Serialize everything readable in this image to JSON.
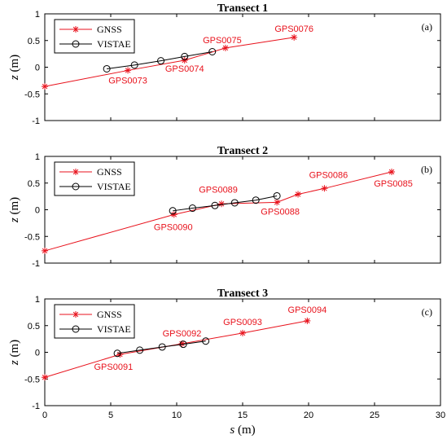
{
  "colors": {
    "gnss": "#e8121c",
    "vistae": "#000000"
  },
  "chart_data": [
    {
      "type": "line",
      "title": "Transect 1",
      "panel_label": "(a)",
      "xlabel": "",
      "ylabel": "z (m)",
      "xlim": [
        0,
        30
      ],
      "ylim": [
        -1,
        1
      ],
      "yticks": [
        "-1",
        "-0.5",
        "0",
        "0.5",
        "1"
      ],
      "legend": [
        "GNSS",
        "VISTAE"
      ],
      "legend_position": "top-left",
      "series": [
        {
          "name": "GNSS",
          "marker": "star",
          "points": [
            [
              0,
              -0.36
            ],
            [
              6.3,
              -0.06
            ],
            [
              10.6,
              0.13
            ],
            [
              13.7,
              0.36
            ],
            [
              18.9,
              0.56
            ]
          ]
        },
        {
          "name": "VISTAE",
          "marker": "circle",
          "points": [
            [
              4.7,
              -0.03
            ],
            [
              6.8,
              0.04
            ],
            [
              8.8,
              0.12
            ],
            [
              10.6,
              0.2
            ],
            [
              12.7,
              0.29
            ]
          ]
        }
      ],
      "annotations": [
        {
          "text": "GPS0073",
          "x": 6.3,
          "y": -0.06
        },
        {
          "text": "GPS0074",
          "x": 10.6,
          "y": 0.13
        },
        {
          "text": "GPS0075",
          "x": 13.7,
          "y": 0.36
        },
        {
          "text": "GPS0076",
          "x": 18.9,
          "y": 0.56
        }
      ]
    },
    {
      "type": "line",
      "title": "Transect 2",
      "panel_label": "(b)",
      "xlabel": "",
      "ylabel": "z (m)",
      "xlim": [
        0,
        30
      ],
      "ylim": [
        -1,
        1
      ],
      "yticks": [
        "-1",
        "-0.5",
        "0",
        "0.5",
        "1"
      ],
      "legend": [
        "GNSS",
        "VISTAE"
      ],
      "legend_position": "top-left",
      "series": [
        {
          "name": "GNSS",
          "marker": "star",
          "points": [
            [
              0,
              -0.77
            ],
            [
              9.8,
              -0.09
            ],
            [
              13.4,
              0.11
            ],
            [
              17.6,
              0.14
            ],
            [
              19.2,
              0.29
            ],
            [
              21.2,
              0.4
            ],
            [
              26.3,
              0.71
            ]
          ]
        },
        {
          "name": "VISTAE",
          "marker": "circle",
          "points": [
            [
              9.7,
              -0.02
            ],
            [
              11.2,
              0.03
            ],
            [
              12.9,
              0.08
            ],
            [
              14.4,
              0.13
            ],
            [
              16.0,
              0.18
            ],
            [
              17.6,
              0.26
            ]
          ]
        }
      ],
      "annotations": [
        {
          "text": "GPS0089",
          "x": 13.4,
          "y": 0.11
        },
        {
          "text": "GPS0090",
          "x": 9.8,
          "y": -0.09
        },
        {
          "text": "GPS0088",
          "x": 17.6,
          "y": 0.14
        },
        {
          "text": "GPS0086",
          "x": 21.2,
          "y": 0.4
        },
        {
          "text": "GPS0085",
          "x": 26.3,
          "y": 0.71
        }
      ]
    },
    {
      "type": "line",
      "title": "Transect 3",
      "panel_label": "(c)",
      "xlabel": "s (m)",
      "ylabel": "z (m)",
      "xlim": [
        0,
        30
      ],
      "ylim": [
        -1,
        1
      ],
      "xticks": [
        "0",
        "5",
        "10",
        "15",
        "20",
        "25",
        "30"
      ],
      "yticks": [
        "-1",
        "-0.5",
        "0",
        "0.5",
        "1"
      ],
      "legend": [
        "GNSS",
        "VISTAE"
      ],
      "legend_position": "top-left",
      "series": [
        {
          "name": "GNSS",
          "marker": "star",
          "points": [
            [
              0,
              -0.47
            ],
            [
              5.7,
              -0.04
            ],
            [
              10.4,
              0.16
            ],
            [
              15.0,
              0.36
            ],
            [
              19.9,
              0.59
            ]
          ]
        },
        {
          "name": "VISTAE",
          "marker": "circle",
          "points": [
            [
              5.5,
              -0.02
            ],
            [
              7.2,
              0.04
            ],
            [
              8.9,
              0.1
            ],
            [
              10.5,
              0.15
            ],
            [
              12.2,
              0.21
            ]
          ]
        }
      ],
      "annotations": [
        {
          "text": "GPS0091",
          "x": 5.7,
          "y": -0.04
        },
        {
          "text": "GPS0092",
          "x": 10.4,
          "y": 0.16
        },
        {
          "text": "GPS0093",
          "x": 15.0,
          "y": 0.36
        },
        {
          "text": "GPS0094",
          "x": 19.9,
          "y": 0.59
        }
      ]
    }
  ]
}
